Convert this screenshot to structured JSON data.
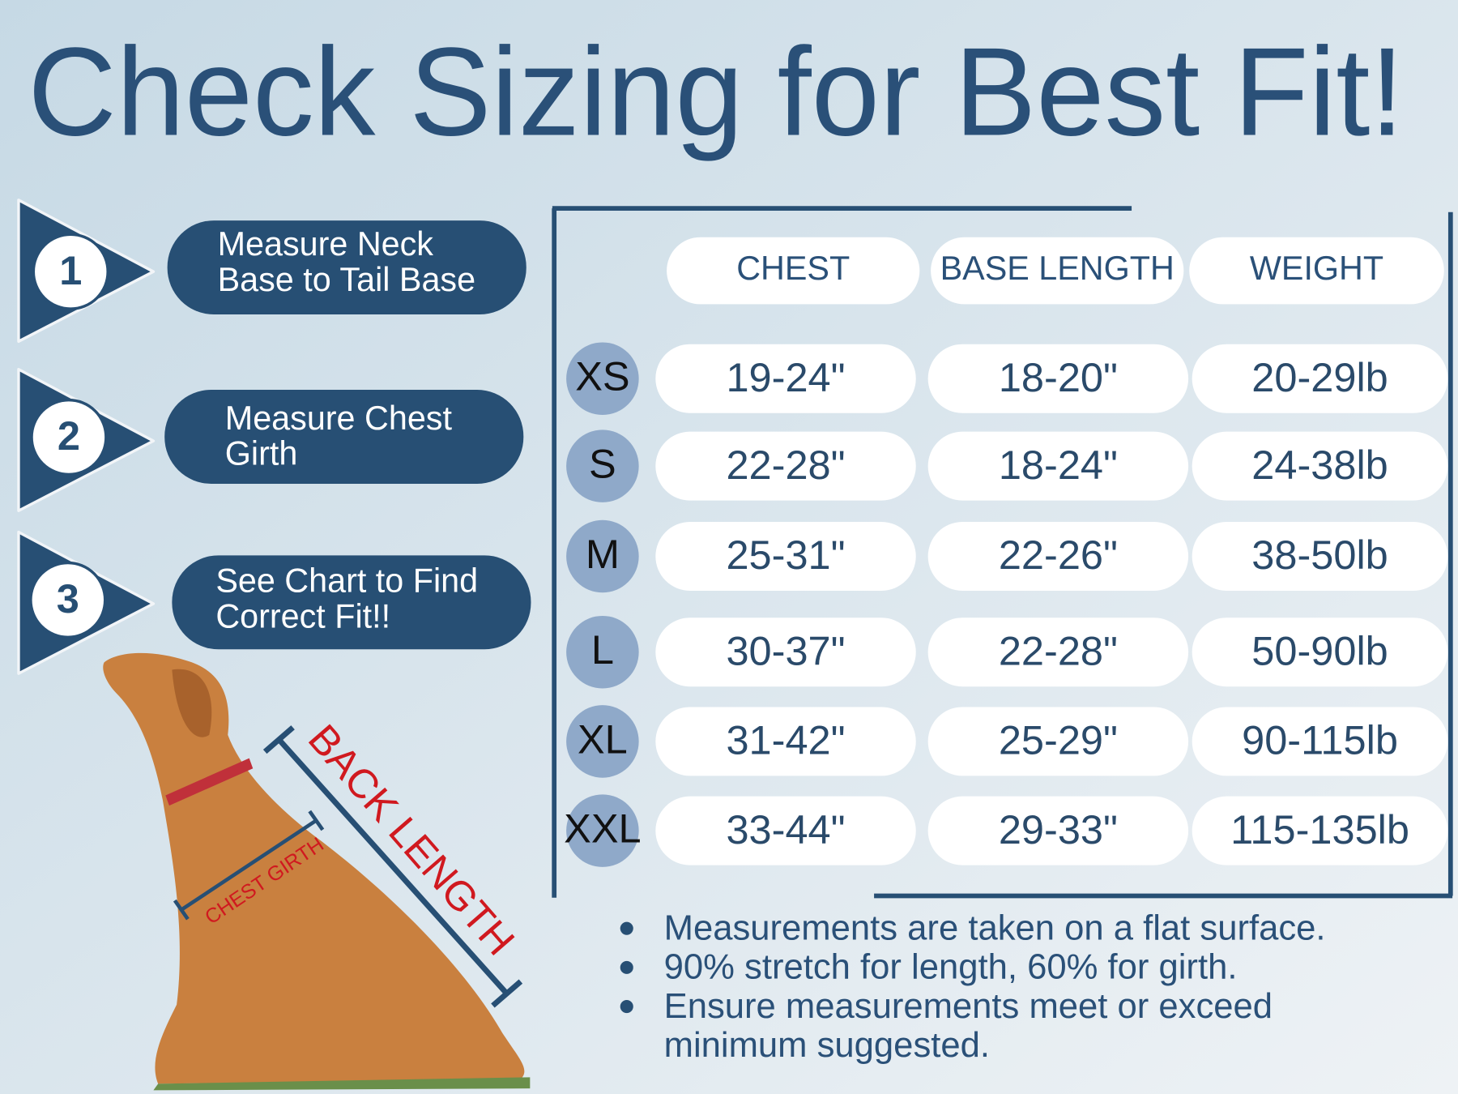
{
  "header": {
    "title": "Check Sizing for Best Fit!"
  },
  "steps": [
    {
      "number": "1",
      "lines": [
        "Measure Neck",
        "Base to Tail Base"
      ]
    },
    {
      "number": "2",
      "lines": [
        "Measure Chest",
        "Girth"
      ]
    },
    {
      "number": "3",
      "lines": [
        "See Chart to Find",
        "Correct Fit!!"
      ]
    }
  ],
  "table": {
    "columns": [
      "CHEST",
      "BASE LENGTH",
      "WEIGHT"
    ],
    "rows": [
      {
        "size": "XS",
        "values": [
          "19-24\"",
          "18-20\"",
          "20-29lb"
        ]
      },
      {
        "size": "S",
        "values": [
          "22-28\"",
          "18-24\"",
          "24-38lb"
        ]
      },
      {
        "size": "M",
        "values": [
          "25-31\"",
          "22-26\"",
          "38-50lb"
        ]
      },
      {
        "size": "L",
        "values": [
          "30-37\"",
          "22-28\"",
          "50-90lb"
        ]
      },
      {
        "size": "XL",
        "values": [
          "31-42\"",
          "25-29\"",
          "90-115lb"
        ]
      },
      {
        "size": "XXL",
        "values": [
          "33-44\"",
          "29-33\"",
          "115-135lb"
        ]
      }
    ]
  },
  "illustration": {
    "back_label": "BACK LENGTH",
    "chest_label": "CHEST GIRTH"
  },
  "notes": [
    {
      "lines": [
        "Measurements are taken on a flat surface."
      ]
    },
    {
      "lines": [
        "90% stretch for length, 60% for girth."
      ]
    },
    {
      "lines": [
        "Ensure measurements meet or exceed",
        "minimum suggested."
      ]
    }
  ]
}
